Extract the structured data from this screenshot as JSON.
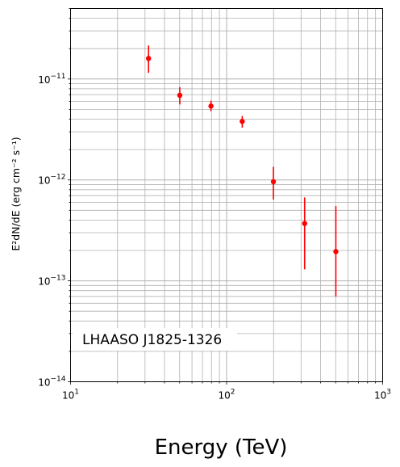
{
  "chart_data": {
    "type": "scatter",
    "xscale": "log",
    "yscale": "log",
    "xlim": [
      10,
      1000
    ],
    "ylim": [
      1e-14,
      5e-11
    ],
    "xlabel": "Energy (TeV)",
    "ylabel": "E²dN/dE (erg cm⁻² s⁻¹)",
    "annotation": "LHAASO J1825-1326",
    "grid": "major and minor",
    "marker_color": "#ff0000",
    "x_ticks": [
      {
        "value": 10,
        "mantissa": "10",
        "exponent": "1"
      },
      {
        "value": 100,
        "mantissa": "10",
        "exponent": "2"
      },
      {
        "value": 1000,
        "mantissa": "10",
        "exponent": "3"
      }
    ],
    "y_ticks": [
      {
        "value": 1e-14,
        "mantissa": "10",
        "exponent": "−14"
      },
      {
        "value": 1e-13,
        "mantissa": "10",
        "exponent": "−13"
      },
      {
        "value": 1e-12,
        "mantissa": "10",
        "exponent": "−12"
      },
      {
        "value": 1e-11,
        "mantissa": "10",
        "exponent": "−11"
      }
    ],
    "points": [
      {
        "x": 31.6,
        "y": 1.6e-11,
        "ylow": 1.15e-11,
        "yhigh": 2.15e-11
      },
      {
        "x": 50.1,
        "y": 6.9e-12,
        "ylow": 5.6e-12,
        "yhigh": 8.3e-12
      },
      {
        "x": 79.4,
        "y": 5.4e-12,
        "ylow": 4.8e-12,
        "yhigh": 6.1e-12
      },
      {
        "x": 125.9,
        "y": 3.8e-12,
        "ylow": 3.3e-12,
        "yhigh": 4.3e-12
      },
      {
        "x": 199.5,
        "y": 9.6e-13,
        "ylow": 6.4e-13,
        "yhigh": 1.35e-12
      },
      {
        "x": 316.2,
        "y": 3.7e-13,
        "ylow": 1.3e-13,
        "yhigh": 6.7e-13
      },
      {
        "x": 501.2,
        "y": 1.95e-13,
        "ylow": 7e-14,
        "yhigh": 5.5e-13
      }
    ]
  }
}
